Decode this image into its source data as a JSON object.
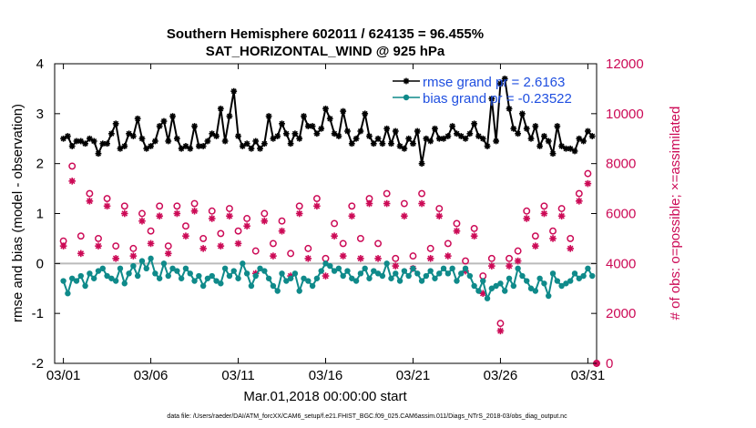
{
  "figure": {
    "title_line1": "Southern Hemisphere 602011 / 624135 = 96.455%",
    "title_line2": "SAT_HORIZONTAL_WIND @ 925 hPa",
    "xlabel": "Mar.01,2018 00:00:00 start",
    "ylabel_left": "rmse and bias (model - observation)",
    "ylabel_right": "# of obs: o=possible; ×=assimilated",
    "footnote": "data file: /Users/raeder/DAI/ATM_forcXX/CAM6_setup/f.e21.FHIST_BGC.f09_025.CAM6assim.011/Diags_NTrS_2018-03/obs_diag_output.nc",
    "colors": {
      "rmse": "#000000",
      "bias": "#0f8a8a",
      "obs": "#cc0a56",
      "legend_text": "#1f4fe0",
      "zero_line": "#bbbbbb"
    }
  },
  "chart_data": {
    "type": "line",
    "title": "Southern Hemisphere 602011 / 624135 = 96.455%",
    "subtitle": "SAT_HORIZONTAL_WIND @ 925 hPa",
    "xlabel": "Mar.01,2018 00:00:00 start",
    "ylabel": "rmse and bias (model - observation)",
    "y2label": "# of obs: o=possible; ×=assimilated",
    "xlim": [
      0.5,
      31.5
    ],
    "xticks": [
      1,
      6,
      11,
      16,
      21,
      26,
      31
    ],
    "xtick_labels": [
      "03/01",
      "03/06",
      "03/11",
      "03/16",
      "03/21",
      "03/26",
      "03/31"
    ],
    "ylim": [
      -2,
      4
    ],
    "yticks": [
      -2,
      -1,
      0,
      1,
      2,
      3,
      4
    ],
    "ytick_labels": [
      "-2",
      "-1",
      "0",
      "1",
      "2",
      "3",
      "4"
    ],
    "y2lim": [
      0,
      12000
    ],
    "y2ticks": [
      0,
      2000,
      4000,
      6000,
      8000,
      10000,
      12000
    ],
    "y2tick_labels": [
      "0",
      "2000",
      "4000",
      "6000",
      "8000",
      "10000",
      "12000"
    ],
    "legend_entries": [
      "rmse grand pr = 2.6163",
      "bias grand pr = -0.23522"
    ],
    "series": [
      {
        "name": "rmse",
        "axis": "left",
        "marker": "star",
        "x": [
          1.0,
          1.25,
          1.5,
          1.75,
          2.0,
          2.25,
          2.5,
          2.75,
          3.0,
          3.25,
          3.5,
          3.75,
          4.0,
          4.25,
          4.5,
          4.75,
          5.0,
          5.25,
          5.5,
          5.75,
          6.0,
          6.25,
          6.5,
          6.75,
          7.0,
          7.25,
          7.5,
          7.75,
          8.0,
          8.25,
          8.5,
          8.75,
          9.0,
          9.25,
          9.5,
          9.75,
          10.0,
          10.25,
          10.5,
          10.75,
          11.0,
          11.25,
          11.5,
          11.75,
          12.0,
          12.25,
          12.5,
          12.75,
          13.0,
          13.25,
          13.5,
          13.75,
          14.0,
          14.25,
          14.5,
          14.75,
          15.0,
          15.25,
          15.5,
          15.75,
          16.0,
          16.25,
          16.5,
          16.75,
          17.0,
          17.25,
          17.5,
          17.75,
          18.0,
          18.25,
          18.5,
          18.75,
          19.0,
          19.25,
          19.5,
          19.75,
          20.0,
          20.25,
          20.5,
          20.75,
          21.0,
          21.25,
          21.5,
          21.75,
          22.0,
          22.25,
          22.5,
          22.75,
          23.0,
          23.25,
          23.5,
          23.75,
          24.0,
          24.25,
          24.5,
          24.75,
          25.0,
          25.25,
          25.5,
          25.75,
          26.0,
          26.25,
          26.5,
          26.75,
          27.0,
          27.25,
          27.5,
          27.75,
          28.0,
          28.25,
          28.5,
          28.75,
          29.0,
          29.25,
          29.5,
          29.75,
          30.0,
          30.25,
          30.5,
          30.75,
          31.0,
          31.25
        ],
        "values": [
          2.5,
          2.55,
          2.35,
          2.45,
          2.45,
          2.4,
          2.5,
          2.45,
          2.2,
          2.4,
          2.4,
          2.6,
          2.8,
          2.3,
          2.35,
          2.6,
          2.55,
          2.9,
          2.5,
          2.3,
          2.35,
          2.45,
          2.75,
          2.85,
          2.45,
          2.95,
          2.5,
          2.3,
          2.35,
          2.3,
          2.75,
          2.35,
          2.35,
          2.45,
          2.6,
          2.55,
          3.1,
          2.45,
          2.95,
          3.45,
          2.55,
          2.35,
          2.4,
          2.3,
          2.45,
          2.3,
          2.4,
          2.95,
          2.5,
          2.55,
          2.8,
          2.6,
          2.4,
          2.6,
          2.5,
          2.95,
          2.75,
          2.75,
          2.6,
          2.7,
          3.1,
          2.9,
          2.6,
          2.55,
          3.05,
          2.65,
          2.4,
          2.5,
          2.65,
          3.0,
          2.55,
          2.4,
          2.5,
          2.4,
          2.7,
          2.4,
          2.65,
          2.35,
          2.3,
          2.5,
          2.4,
          2.65,
          2.0,
          2.5,
          2.45,
          2.7,
          2.5,
          2.5,
          2.55,
          2.75,
          2.6,
          2.55,
          2.5,
          2.6,
          2.8,
          2.55,
          2.5,
          2.35,
          3.3,
          2.45,
          3.6,
          3.7,
          3.1,
          2.7,
          2.6,
          3.0,
          2.7,
          2.5,
          2.75,
          2.35,
          2.55,
          2.45,
          2.2,
          2.75,
          2.35,
          2.3,
          2.3,
          2.25,
          2.5,
          2.45,
          2.65,
          2.55
        ],
        "legend_label": "rmse grand pr = 2.6163"
      },
      {
        "name": "bias",
        "axis": "left",
        "marker": "circle",
        "x": [
          1.0,
          1.25,
          1.5,
          1.75,
          2.0,
          2.25,
          2.5,
          2.75,
          3.0,
          3.25,
          3.5,
          3.75,
          4.0,
          4.25,
          4.5,
          4.75,
          5.0,
          5.25,
          5.5,
          5.75,
          6.0,
          6.25,
          6.5,
          6.75,
          7.0,
          7.25,
          7.5,
          7.75,
          8.0,
          8.25,
          8.5,
          8.75,
          9.0,
          9.25,
          9.5,
          9.75,
          10.0,
          10.25,
          10.5,
          10.75,
          11.0,
          11.25,
          11.5,
          11.75,
          12.0,
          12.25,
          12.5,
          12.75,
          13.0,
          13.25,
          13.5,
          13.75,
          14.0,
          14.25,
          14.5,
          14.75,
          15.0,
          15.25,
          15.5,
          15.75,
          16.0,
          16.25,
          16.5,
          16.75,
          17.0,
          17.25,
          17.5,
          17.75,
          18.0,
          18.25,
          18.5,
          18.75,
          19.0,
          19.25,
          19.5,
          19.75,
          20.0,
          20.25,
          20.5,
          20.75,
          21.0,
          21.25,
          21.5,
          21.75,
          22.0,
          22.25,
          22.5,
          22.75,
          23.0,
          23.25,
          23.5,
          23.75,
          24.0,
          24.25,
          24.5,
          24.75,
          25.0,
          25.25,
          25.5,
          25.75,
          26.0,
          26.25,
          26.5,
          26.75,
          27.0,
          27.25,
          27.5,
          27.75,
          28.0,
          28.25,
          28.5,
          28.75,
          29.0,
          29.25,
          29.5,
          29.75,
          30.0,
          30.25,
          30.5,
          30.75,
          31.0,
          31.25
        ],
        "values": [
          -0.35,
          -0.6,
          -0.3,
          -0.35,
          -0.25,
          -0.45,
          -0.2,
          -0.3,
          -0.15,
          -0.1,
          -0.25,
          -0.3,
          -0.35,
          -0.1,
          -0.4,
          -0.2,
          -0.05,
          -0.25,
          0.05,
          -0.1,
          0.1,
          -0.2,
          -0.3,
          0.0,
          -0.25,
          -0.1,
          -0.15,
          -0.3,
          -0.1,
          -0.2,
          -0.35,
          -0.25,
          -0.45,
          -0.3,
          -0.25,
          -0.35,
          -0.4,
          -0.1,
          -0.25,
          -0.15,
          -0.3,
          0.0,
          -0.2,
          -0.45,
          -0.25,
          -0.1,
          -0.15,
          -0.3,
          -0.45,
          -0.55,
          -0.2,
          -0.35,
          -0.3,
          -0.2,
          -0.55,
          -0.3,
          -0.35,
          -0.45,
          -0.3,
          -0.15,
          0.0,
          -0.05,
          -0.15,
          -0.1,
          -0.25,
          -0.15,
          -0.3,
          -0.35,
          -0.2,
          -0.1,
          -0.3,
          -0.15,
          -0.2,
          -0.25,
          0.0,
          -0.3,
          -0.2,
          -0.35,
          -0.15,
          -0.25,
          -0.1,
          -0.2,
          -0.35,
          -0.25,
          -0.15,
          -0.3,
          -0.2,
          -0.1,
          -0.2,
          -0.1,
          -0.35,
          -0.2,
          -0.1,
          -0.25,
          -0.45,
          -0.55,
          -0.35,
          -0.7,
          -0.5,
          -0.45,
          -0.4,
          -0.55,
          -0.3,
          -0.45,
          -0.1,
          -0.25,
          -0.35,
          -0.5,
          -0.55,
          -0.3,
          -0.4,
          -0.65,
          -0.2,
          -0.35,
          -0.45,
          -0.4,
          -0.35,
          -0.2,
          -0.3,
          -0.25,
          -0.1,
          -0.25
        ],
        "legend_label": "bias grand pr = -0.23522"
      },
      {
        "name": "obs possible",
        "axis": "right",
        "marker": "open-circle",
        "x": [
          1.0,
          1.5,
          2.0,
          2.5,
          3.0,
          3.5,
          4.0,
          4.5,
          5.0,
          5.5,
          6.0,
          6.5,
          7.0,
          7.5,
          8.0,
          8.5,
          9.0,
          9.5,
          10.0,
          10.5,
          11.0,
          11.5,
          12.0,
          12.5,
          13.0,
          13.5,
          14.0,
          14.5,
          15.0,
          15.5,
          16.0,
          16.5,
          17.0,
          17.5,
          18.0,
          18.5,
          19.0,
          19.5,
          20.0,
          20.5,
          21.0,
          21.5,
          22.0,
          22.5,
          23.0,
          23.5,
          24.0,
          24.5,
          25.0,
          25.5,
          26.0,
          26.5,
          27.0,
          27.5,
          28.0,
          28.5,
          29.0,
          29.5,
          30.0,
          30.5,
          31.0,
          31.5
        ],
        "values": [
          4900,
          7900,
          5100,
          6800,
          5000,
          6600,
          4700,
          6300,
          4600,
          6000,
          5300,
          6300,
          4700,
          6300,
          5500,
          6400,
          5000,
          6100,
          5200,
          6200,
          5300,
          5800,
          4500,
          6000,
          4800,
          5700,
          4400,
          6300,
          4600,
          6600,
          4200,
          5600,
          4800,
          6300,
          5000,
          6600,
          4800,
          6800,
          4200,
          6400,
          4300,
          6800,
          4600,
          6200,
          4800,
          5600,
          4100,
          5400,
          3500,
          4200,
          1600,
          4200,
          4500,
          6100,
          5100,
          6300,
          5300,
          6200,
          5000,
          6800,
          7600,
          0
        ],
        "legend_label": ""
      },
      {
        "name": "obs assimilated",
        "axis": "right",
        "marker": "star",
        "x": [
          1.0,
          1.5,
          2.0,
          2.5,
          3.0,
          3.5,
          4.0,
          4.5,
          5.0,
          5.5,
          6.0,
          6.5,
          7.0,
          7.5,
          8.0,
          8.5,
          9.0,
          9.5,
          10.0,
          10.5,
          11.0,
          11.5,
          12.0,
          12.5,
          13.0,
          13.5,
          14.0,
          14.5,
          15.0,
          15.5,
          16.0,
          16.5,
          17.0,
          17.5,
          18.0,
          18.5,
          19.0,
          19.5,
          20.0,
          20.5,
          21.0,
          21.5,
          22.0,
          22.5,
          23.0,
          23.5,
          24.0,
          24.5,
          25.0,
          25.5,
          26.0,
          26.5,
          27.0,
          27.5,
          28.0,
          28.5,
          29.0,
          29.5,
          30.0,
          30.5,
          31.0,
          31.5
        ],
        "values": [
          4700,
          7300,
          4400,
          6500,
          4700,
          6300,
          4200,
          6000,
          4300,
          5700,
          4800,
          5900,
          4400,
          6000,
          5100,
          6100,
          4600,
          5800,
          4700,
          5900,
          4800,
          5500,
          3600,
          5700,
          4300,
          5300,
          3500,
          6000,
          4200,
          6300,
          3500,
          5100,
          4300,
          5900,
          4200,
          6400,
          4200,
          6400,
          3900,
          5900,
          3800,
          6400,
          4200,
          5900,
          4300,
          5300,
          3700,
          5100,
          2800,
          3900,
          1300,
          3900,
          4100,
          5800,
          4700,
          6000,
          5000,
          5900,
          4600,
          6500,
          7200,
          0
        ],
        "legend_label": ""
      }
    ]
  }
}
